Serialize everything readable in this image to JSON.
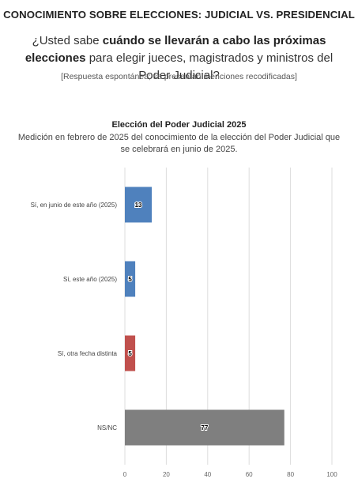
{
  "header": {
    "title": "CONOCIMIENTO SOBRE ELECCIONES: JUDICIAL VS. PRESIDENCIAL"
  },
  "question": {
    "prefix": "¿Usted sabe ",
    "bold": "cuándo se llevarán a cabo las próximas elecciones",
    "suffix": " para elegir jueces, magistrados y ministros del Poder Judicial?"
  },
  "note": "[Respuesta espontánea; se presentan menciones recodificadas]",
  "chart_data": {
    "type": "bar",
    "orientation": "horizontal",
    "title": "Elección del Poder Judicial 2025",
    "subtitle": "Medición en febrero de 2025 del conocimiento de la elección del Poder Judicial que se celebrará en junio de 2025.",
    "categories": [
      "Sí, en junio de este año (2025)",
      "Sí, este año (2025)",
      "Sí, otra fecha distinta",
      "NS/NC"
    ],
    "values": [
      13,
      5,
      5,
      77
    ],
    "data_labels": [
      "13",
      "5",
      "5",
      "77"
    ],
    "bar_colors": [
      "#4f81bd",
      "#4f81bd",
      "#c0504d",
      "#7f7f7f"
    ],
    "xlim": [
      0,
      100
    ],
    "xticks": [
      "0",
      "20",
      "40",
      "60",
      "80",
      "100"
    ],
    "grid": true,
    "xlabel": "",
    "ylabel": ""
  }
}
